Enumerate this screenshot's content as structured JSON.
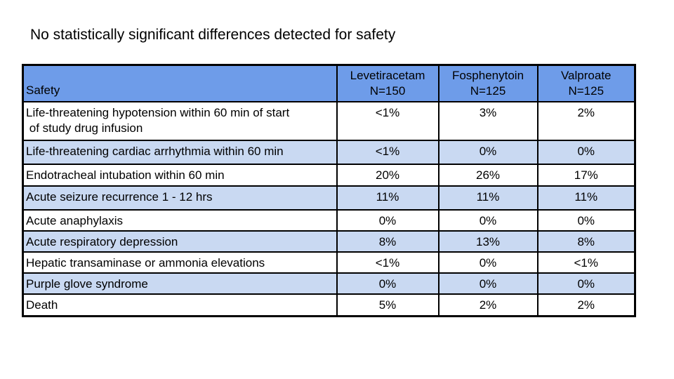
{
  "slide": {
    "title": "No statistically significant differences detected for safety"
  },
  "table": {
    "header": {
      "row_label": "Safety",
      "columns": [
        {
          "drug": "Levetiracetam",
          "n": "N=150"
        },
        {
          "drug": "Fosphenytoin",
          "n": "N=125"
        },
        {
          "drug": "Valproate",
          "n": "N=125"
        }
      ]
    },
    "rows": [
      {
        "label": "Life-threatening hypotension within 60 min of start\n of study drug infusion",
        "values": [
          "<1%",
          "3%",
          "2%"
        ]
      },
      {
        "label": "Life-threatening cardiac arrhythmia within 60 min",
        "values": [
          "<1%",
          "0%",
          "0%"
        ]
      },
      {
        "label": "Endotracheal intubation within 60 min",
        "values": [
          "20%",
          "26%",
          "17%"
        ]
      },
      {
        "label": "Acute seizure recurrence 1 - 12 hrs",
        "values": [
          "11%",
          "11%",
          "11%"
        ]
      },
      {
        "label": "Acute anaphylaxis",
        "values": [
          "0%",
          "0%",
          "0%"
        ]
      },
      {
        "label": "Acute respiratory depression",
        "values": [
          "8%",
          "13%",
          "8%"
        ]
      },
      {
        "label": "Hepatic transaminase or ammonia elevations",
        "values": [
          "<1%",
          "0%",
          "<1%"
        ]
      },
      {
        "label": "Purple glove syndrome",
        "values": [
          "0%",
          "0%",
          "0%"
        ]
      },
      {
        "label": "Death",
        "values": [
          "5%",
          "2%",
          "2%"
        ]
      }
    ],
    "colors": {
      "header_bg": "#6E9CE9",
      "shaded_row_bg": "#C9D9F2",
      "unshaded_row_bg": "#FFFFFF",
      "border": "#000000",
      "text": "#000000"
    }
  },
  "chart_data": {
    "type": "table",
    "title": "No statistically significant differences detected for safety",
    "columns": [
      "Safety",
      "Levetiracetam N=150",
      "Fosphenytoin N=125",
      "Valproate N=125"
    ],
    "rows": [
      [
        "Life-threatening hypotension within 60 min of start of study drug infusion",
        "<1%",
        "3%",
        "2%"
      ],
      [
        "Life-threatening cardiac arrhythmia within 60 min",
        "<1%",
        "0%",
        "0%"
      ],
      [
        "Endotracheal intubation within 60 min",
        "20%",
        "26%",
        "17%"
      ],
      [
        "Acute seizure recurrence 1 - 12 hrs",
        "11%",
        "11%",
        "11%"
      ],
      [
        "Acute anaphylaxis",
        "0%",
        "0%",
        "0%"
      ],
      [
        "Acute respiratory depression",
        "8%",
        "13%",
        "8%"
      ],
      [
        "Hepatic transaminase or ammonia elevations",
        "<1%",
        "0%",
        "<1%"
      ],
      [
        "Purple glove syndrome",
        "0%",
        "0%",
        "0%"
      ],
      [
        "Death",
        "5%",
        "2%",
        "2%"
      ]
    ]
  }
}
